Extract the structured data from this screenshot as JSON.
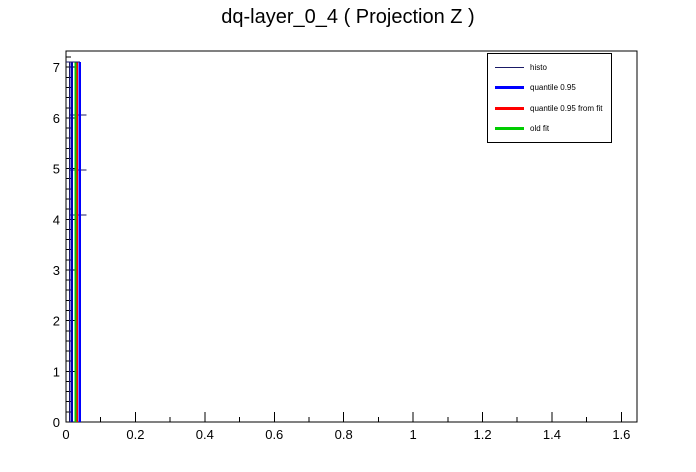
{
  "title": "dq-layer_0_4 ( Projection Z )",
  "legend": {
    "items": [
      {
        "label": "histo",
        "color": "#1a1a66",
        "thickness": 1
      },
      {
        "label": "quantile 0.95",
        "color": "#0000ff",
        "thickness": 3
      },
      {
        "label": "quantile 0.95 from fit",
        "color": "#ff0000",
        "thickness": 3
      },
      {
        "label": "old fit",
        "color": "#00cc00",
        "thickness": 3
      }
    ]
  },
  "chart_data": {
    "type": "bar",
    "subtype": "root-histogram-with-vertical-lines",
    "title": "dq-layer_0_4 ( Projection Z )",
    "xlabel": "",
    "ylabel": "",
    "grid": false,
    "legend_position": "top-right",
    "x_axis": {
      "min": 0,
      "max": 1.645,
      "minor_step": 0.1,
      "ticks": [
        {
          "v": 0,
          "label": "0"
        },
        {
          "v": 0.2,
          "label": "0.2"
        },
        {
          "v": 0.4,
          "label": "0.4"
        },
        {
          "v": 0.6,
          "label": "0.6"
        },
        {
          "v": 0.8,
          "label": "0.8"
        },
        {
          "v": 1,
          "label": "1"
        },
        {
          "v": 1.2,
          "label": "1.2"
        },
        {
          "v": 1.4,
          "label": "1.4"
        },
        {
          "v": 1.6,
          "label": "1.6"
        }
      ]
    },
    "y_axis": {
      "min": 0,
      "max": 7.32,
      "minor_step": 0.2,
      "ticks": [
        {
          "v": 0,
          "label": "0"
        },
        {
          "v": 1,
          "label": "1"
        },
        {
          "v": 2,
          "label": "2"
        },
        {
          "v": 3,
          "label": "3"
        },
        {
          "v": 4,
          "label": "4"
        },
        {
          "v": 5,
          "label": "5"
        },
        {
          "v": 6,
          "label": "6"
        },
        {
          "v": 7,
          "label": "7"
        }
      ]
    },
    "histogram": {
      "name": "histo",
      "color": "#1a1a66",
      "description": "narrow spike at x~0 reaching y_top; all content within x < 0.06",
      "edge_x": 0.01,
      "y_top": 7.1,
      "cap_x_end": 0.04,
      "steps": [
        {
          "y": 6.06,
          "x_end": 0.059
        },
        {
          "y": 4.97,
          "x_end": 0.059
        },
        {
          "y": 4.08,
          "x_end": 0.059
        }
      ]
    },
    "vlines": [
      {
        "name": "histo peak edge",
        "color": "#0000b3",
        "x": 0.017,
        "w": 2.5
      },
      {
        "name": "old fit",
        "color": "#00cc00",
        "x": 0.027,
        "w": 2
      },
      {
        "name": "quantile 0.95 from fit",
        "color": "#ff0000",
        "x": 0.033,
        "w": 1.5
      },
      {
        "name": "quantile 0.95",
        "color": "#0000ff",
        "x": 0.04,
        "w": 2.5
      }
    ]
  }
}
